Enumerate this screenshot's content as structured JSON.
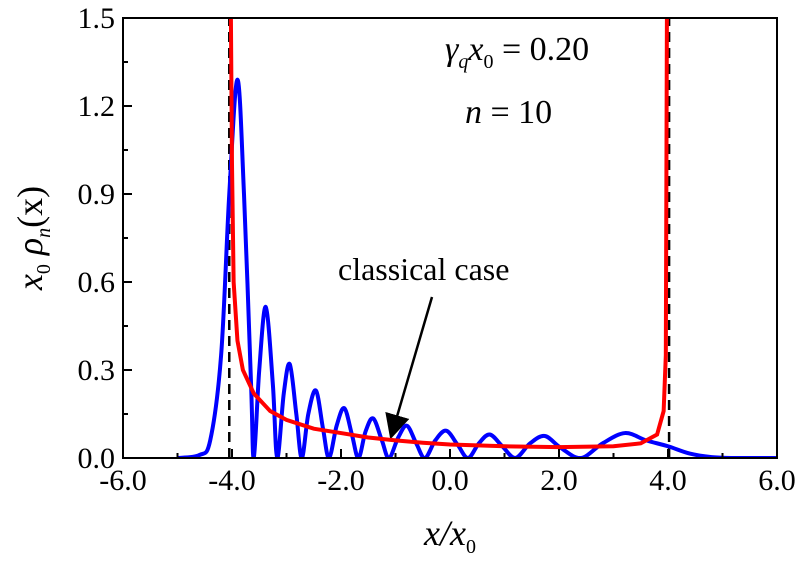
{
  "chart_data": {
    "type": "line",
    "xlabel": [
      "x",
      "/x",
      "0"
    ],
    "ylabel": [
      "x",
      "0",
      " ρ",
      "n",
      "(x)"
    ],
    "xlim": [
      -6,
      6
    ],
    "ylim": [
      0,
      1.5
    ],
    "xticks": [
      {
        "value": -6,
        "label": "-6.0"
      },
      {
        "value": -4,
        "label": "-4.0"
      },
      {
        "value": -2,
        "label": "-2.0"
      },
      {
        "value": 0,
        "label": "0.0"
      },
      {
        "value": 2,
        "label": "2.0"
      },
      {
        "value": 4,
        "label": "4.0"
      },
      {
        "value": 6,
        "label": "6.0"
      }
    ],
    "xminorticks": [
      -5,
      -3,
      -1,
      1,
      3,
      5
    ],
    "yticks": [
      {
        "value": 0,
        "label": "0.0"
      },
      0.3,
      0.6,
      0.9,
      1.2,
      1.5
    ],
    "yminorticks": [
      0.15,
      0.45,
      0.75,
      1.05,
      1.35
    ],
    "series": [
      {
        "color": "#0000ff",
        "smooth": true,
        "x": [
          -5.0,
          -4.6,
          -4.4,
          -4.2,
          -4.05,
          -3.9,
          -3.78,
          -3.65,
          -3.6,
          -3.5,
          -3.38,
          -3.25,
          -3.17,
          -3.05,
          -2.94,
          -2.82,
          -2.72,
          -2.6,
          -2.46,
          -2.33,
          -2.22,
          -2.08,
          -1.94,
          -1.8,
          -1.68,
          -1.55,
          -1.41,
          -1.25,
          -1.12,
          -0.95,
          -0.79,
          -0.62,
          -0.46,
          -0.27,
          -0.07,
          0.14,
          0.33,
          0.53,
          0.73,
          0.96,
          1.2,
          1.47,
          1.74,
          2.03,
          2.4,
          2.8,
          3.21,
          3.6,
          4.0,
          4.4,
          4.8,
          5.2,
          6.0
        ],
        "values": [
          0,
          0.01,
          0.06,
          0.35,
          0.9,
          1.29,
          0.9,
          0.25,
          0,
          0.3,
          0.515,
          0.25,
          0,
          0.22,
          0.32,
          0.15,
          0,
          0.15,
          0.23,
          0.1,
          0,
          0.11,
          0.17,
          0.08,
          0,
          0.09,
          0.135,
          0.06,
          0,
          0.07,
          0.11,
          0.05,
          0,
          0.06,
          0.093,
          0.045,
          0,
          0.05,
          0.08,
          0.04,
          0,
          0.05,
          0.075,
          0.035,
          0,
          0.05,
          0.085,
          0.06,
          0.04,
          0.015,
          0.003,
          0,
          0
        ]
      },
      {
        "color": "#ff0000",
        "smooth": false,
        "x": [
          -4.02,
          -4.0,
          -3.97,
          -3.9,
          -3.8,
          -3.6,
          -3.3,
          -3.0,
          -2.5,
          -2.0,
          -1.5,
          -1.0,
          -0.5,
          0,
          1.0,
          2.0,
          3.0,
          3.5,
          3.8,
          3.92,
          3.96,
          3.98
        ],
        "values": [
          1.5,
          1.0,
          0.6,
          0.4,
          0.3,
          0.22,
          0.16,
          0.13,
          0.1,
          0.085,
          0.07,
          0.06,
          0.052,
          0.046,
          0.04,
          0.037,
          0.04,
          0.05,
          0.08,
          0.16,
          0.35,
          1.5
        ]
      }
    ],
    "vlines": [
      -4.05,
      4.02
    ],
    "annotations": {
      "gamma": [
        "γ",
        "q",
        "x",
        "0",
        " = 0.20"
      ],
      "n": [
        "n",
        " = 10"
      ],
      "arrow_text": "classical case"
    }
  }
}
